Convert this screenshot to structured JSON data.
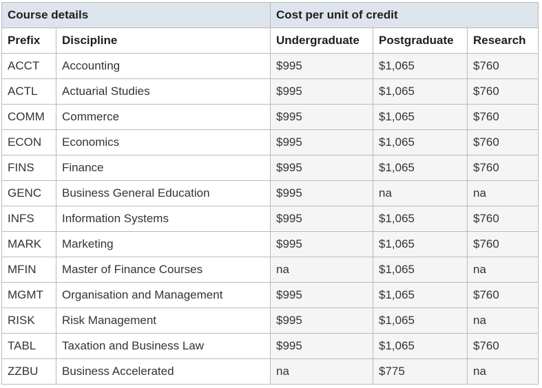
{
  "table": {
    "group_headers": {
      "course_details": "Course details",
      "cost_per_unit": "Cost per unit of credit"
    },
    "columns": {
      "prefix": "Prefix",
      "discipline": "Discipline",
      "undergraduate": "Undergraduate",
      "postgraduate": "Postgraduate",
      "research": "Research"
    },
    "rows": [
      {
        "prefix": "ACCT",
        "discipline": "Accounting",
        "undergraduate": "$995",
        "postgraduate": "$1,065",
        "research": "$760"
      },
      {
        "prefix": "ACTL",
        "discipline": "Actuarial Studies",
        "undergraduate": "$995",
        "postgraduate": "$1,065",
        "research": "$760"
      },
      {
        "prefix": "COMM",
        "discipline": "Commerce",
        "undergraduate": "$995",
        "postgraduate": "$1,065",
        "research": "$760"
      },
      {
        "prefix": "ECON",
        "discipline": "Economics",
        "undergraduate": "$995",
        "postgraduate": "$1,065",
        "research": "$760"
      },
      {
        "prefix": "FINS",
        "discipline": "Finance",
        "undergraduate": "$995",
        "postgraduate": "$1,065",
        "research": "$760"
      },
      {
        "prefix": "GENC",
        "discipline": "Business General Education",
        "undergraduate": "$995",
        "postgraduate": "na",
        "research": "na"
      },
      {
        "prefix": "INFS",
        "discipline": "Information Systems",
        "undergraduate": "$995",
        "postgraduate": "$1,065",
        "research": "$760"
      },
      {
        "prefix": "MARK",
        "discipline": "Marketing",
        "undergraduate": "$995",
        "postgraduate": "$1,065",
        "research": "$760"
      },
      {
        "prefix": "MFIN",
        "discipline": "Master of Finance Courses",
        "undergraduate": "na",
        "postgraduate": "$1,065",
        "research": "na"
      },
      {
        "prefix": "MGMT",
        "discipline": "Organisation and Management",
        "undergraduate": "$995",
        "postgraduate": "$1,065",
        "research": "$760"
      },
      {
        "prefix": "RISK",
        "discipline": "Risk Management",
        "undergraduate": "$995",
        "postgraduate": "$1,065",
        "research": "na"
      },
      {
        "prefix": "TABL",
        "discipline": "Taxation and Business Law",
        "undergraduate": "$995",
        "postgraduate": "$1,065",
        "research": "$760"
      },
      {
        "prefix": "ZZBU",
        "discipline": "Business Accelerated",
        "undergraduate": "na",
        "postgraduate": "$775",
        "research": "na"
      }
    ]
  }
}
